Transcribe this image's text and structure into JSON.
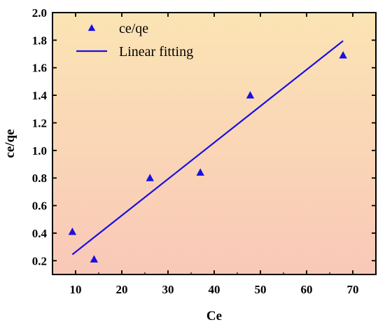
{
  "chart_data": {
    "type": "scatter",
    "xlabel": "Ce",
    "ylabel": "ce/qe",
    "xlim": [
      5,
      75
    ],
    "ylim": [
      0.1,
      2.0
    ],
    "xticks": [
      10,
      20,
      30,
      40,
      50,
      60,
      70
    ],
    "yticks": [
      0.2,
      0.4,
      0.6,
      0.8,
      1.0,
      1.2,
      1.4,
      1.6,
      1.8,
      2.0
    ],
    "xtick_labels": [
      "10",
      "20",
      "30",
      "40",
      "50",
      "60",
      "70"
    ],
    "ytick_labels": [
      "0.2",
      "0.4",
      "0.6",
      "0.8",
      "1.0",
      "1.2",
      "1.4",
      "1.6",
      "1.8",
      "2.0"
    ],
    "grid": false,
    "legend_position": "top-left",
    "background_gradient": [
      "#fbe4b4",
      "#f9c8b8"
    ],
    "series": [
      {
        "name": "ce/qe",
        "kind": "scatter",
        "marker": "triangle-icon",
        "color": "#1a10e0",
        "x": [
          9.3,
          14.0,
          26.1,
          37.0,
          47.8,
          67.9
        ],
        "y": [
          0.41,
          0.21,
          0.8,
          0.84,
          1.4,
          1.69
        ]
      },
      {
        "name": "Linear fitting",
        "kind": "line",
        "color": "#1a10e0",
        "x": [
          9.3,
          67.9
        ],
        "y": [
          0.245,
          1.795
        ]
      }
    ]
  }
}
